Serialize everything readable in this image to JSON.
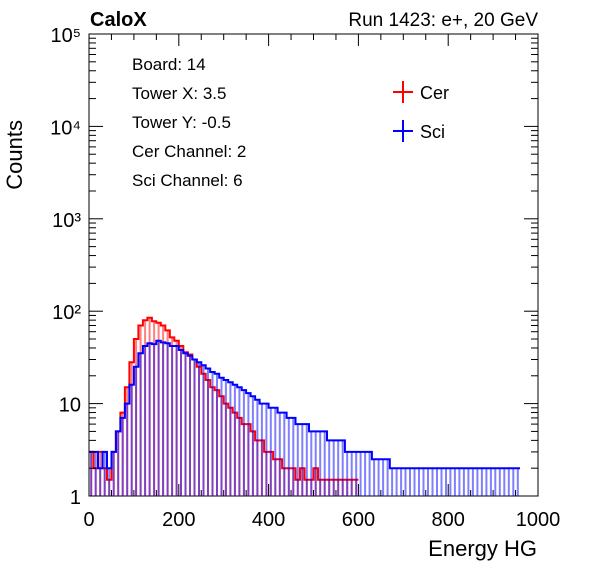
{
  "header": {
    "experiment": "CaloX",
    "run_info": "Run 1423: e+, 20 GeV"
  },
  "info_box": [
    "Board: 14",
    "Tower X: 3.5",
    "Tower Y: -0.5",
    "Cer Channel: 2",
    "Sci Channel: 6"
  ],
  "chart_data": {
    "type": "histogram",
    "xlabel": "Energy HG",
    "ylabel": "Counts",
    "xlim": [
      0,
      1000
    ],
    "ylim": [
      1,
      100000
    ],
    "y_log_scale": true,
    "x_ticks": [
      0,
      200,
      400,
      600,
      800,
      1000
    ],
    "x_tick_labels": [
      "0",
      "200",
      "400",
      "600",
      "800",
      "1000"
    ],
    "y_ticks": [
      1,
      10,
      100,
      1000,
      10000,
      100000
    ],
    "y_tick_labels": [
      "1",
      "10",
      "10²",
      "10³",
      "10⁴",
      "10⁵"
    ],
    "legend_position": "top-right",
    "series": [
      {
        "name": "Cer",
        "color": "#ff0000",
        "points": [
          [
            5,
            3
          ],
          [
            15,
            2
          ],
          [
            25,
            3
          ],
          [
            35,
            2
          ],
          [
            45,
            1.5
          ],
          [
            55,
            3
          ],
          [
            65,
            5
          ],
          [
            75,
            8
          ],
          [
            85,
            15
          ],
          [
            95,
            28
          ],
          [
            105,
            50
          ],
          [
            115,
            70
          ],
          [
            125,
            80
          ],
          [
            135,
            85
          ],
          [
            145,
            78
          ],
          [
            155,
            75
          ],
          [
            165,
            70
          ],
          [
            175,
            62
          ],
          [
            185,
            52
          ],
          [
            195,
            48
          ],
          [
            205,
            42
          ],
          [
            215,
            36
          ],
          [
            225,
            34
          ],
          [
            235,
            30
          ],
          [
            245,
            25
          ],
          [
            255,
            21
          ],
          [
            265,
            18
          ],
          [
            275,
            15
          ],
          [
            285,
            14
          ],
          [
            295,
            12
          ],
          [
            305,
            10
          ],
          [
            315,
            9
          ],
          [
            325,
            8
          ],
          [
            335,
            7
          ],
          [
            345,
            6
          ],
          [
            355,
            6
          ],
          [
            365,
            5
          ],
          [
            375,
            4
          ],
          [
            385,
            4
          ],
          [
            395,
            3
          ],
          [
            405,
            3
          ],
          [
            415,
            2.5
          ],
          [
            425,
            2.5
          ],
          [
            435,
            2
          ],
          [
            445,
            2
          ],
          [
            455,
            2
          ],
          [
            465,
            1.5
          ],
          [
            475,
            2
          ],
          [
            485,
            1.5
          ],
          [
            495,
            1.5
          ],
          [
            505,
            2
          ],
          [
            515,
            1.5
          ],
          [
            525,
            1.5
          ],
          [
            535,
            1.5
          ],
          [
            545,
            1.5
          ],
          [
            555,
            1.5
          ],
          [
            565,
            1.5
          ],
          [
            575,
            1.5
          ],
          [
            585,
            1.5
          ],
          [
            595,
            1.5
          ]
        ]
      },
      {
        "name": "Sci",
        "color": "#0000ff",
        "points": [
          [
            5,
            3
          ],
          [
            15,
            3
          ],
          [
            25,
            2
          ],
          [
            35,
            3
          ],
          [
            45,
            2
          ],
          [
            55,
            3
          ],
          [
            65,
            5
          ],
          [
            75,
            7
          ],
          [
            85,
            10
          ],
          [
            95,
            16
          ],
          [
            105,
            25
          ],
          [
            115,
            35
          ],
          [
            125,
            42
          ],
          [
            135,
            45
          ],
          [
            145,
            44
          ],
          [
            155,
            48
          ],
          [
            165,
            46
          ],
          [
            175,
            45
          ],
          [
            185,
            42
          ],
          [
            195,
            42
          ],
          [
            205,
            38
          ],
          [
            215,
            35
          ],
          [
            225,
            33
          ],
          [
            235,
            30
          ],
          [
            245,
            28
          ],
          [
            255,
            26
          ],
          [
            265,
            24
          ],
          [
            275,
            22
          ],
          [
            285,
            21
          ],
          [
            295,
            19
          ],
          [
            305,
            18
          ],
          [
            315,
            17
          ],
          [
            325,
            16
          ],
          [
            335,
            15
          ],
          [
            345,
            14
          ],
          [
            355,
            13
          ],
          [
            365,
            12
          ],
          [
            375,
            11
          ],
          [
            385,
            10
          ],
          [
            395,
            10
          ],
          [
            405,
            9
          ],
          [
            415,
            9
          ],
          [
            425,
            8
          ],
          [
            435,
            8
          ],
          [
            445,
            7
          ],
          [
            455,
            7
          ],
          [
            465,
            6
          ],
          [
            475,
            6
          ],
          [
            485,
            6
          ],
          [
            495,
            5
          ],
          [
            505,
            5
          ],
          [
            515,
            5
          ],
          [
            525,
            5
          ],
          [
            535,
            4
          ],
          [
            545,
            4
          ],
          [
            555,
            4
          ],
          [
            565,
            4
          ],
          [
            575,
            3
          ],
          [
            585,
            3
          ],
          [
            595,
            3
          ],
          [
            605,
            3
          ],
          [
            615,
            3
          ],
          [
            625,
            3
          ],
          [
            635,
            2.5
          ],
          [
            645,
            2.5
          ],
          [
            655,
            2.5
          ],
          [
            665,
            2.5
          ],
          [
            675,
            2
          ],
          [
            685,
            2
          ],
          [
            695,
            2
          ],
          [
            705,
            2
          ],
          [
            715,
            2
          ],
          [
            725,
            2
          ],
          [
            735,
            2
          ],
          [
            745,
            2
          ],
          [
            755,
            2
          ],
          [
            765,
            2
          ],
          [
            775,
            2
          ],
          [
            785,
            2
          ],
          [
            795,
            2
          ],
          [
            805,
            2
          ],
          [
            815,
            2
          ],
          [
            825,
            2
          ],
          [
            835,
            2
          ],
          [
            845,
            2
          ],
          [
            855,
            2
          ],
          [
            865,
            2
          ],
          [
            875,
            2
          ],
          [
            885,
            2
          ],
          [
            895,
            2
          ],
          [
            905,
            2
          ],
          [
            915,
            2
          ],
          [
            925,
            2
          ],
          [
            935,
            2
          ],
          [
            945,
            2
          ],
          [
            955,
            2
          ]
        ]
      }
    ]
  }
}
